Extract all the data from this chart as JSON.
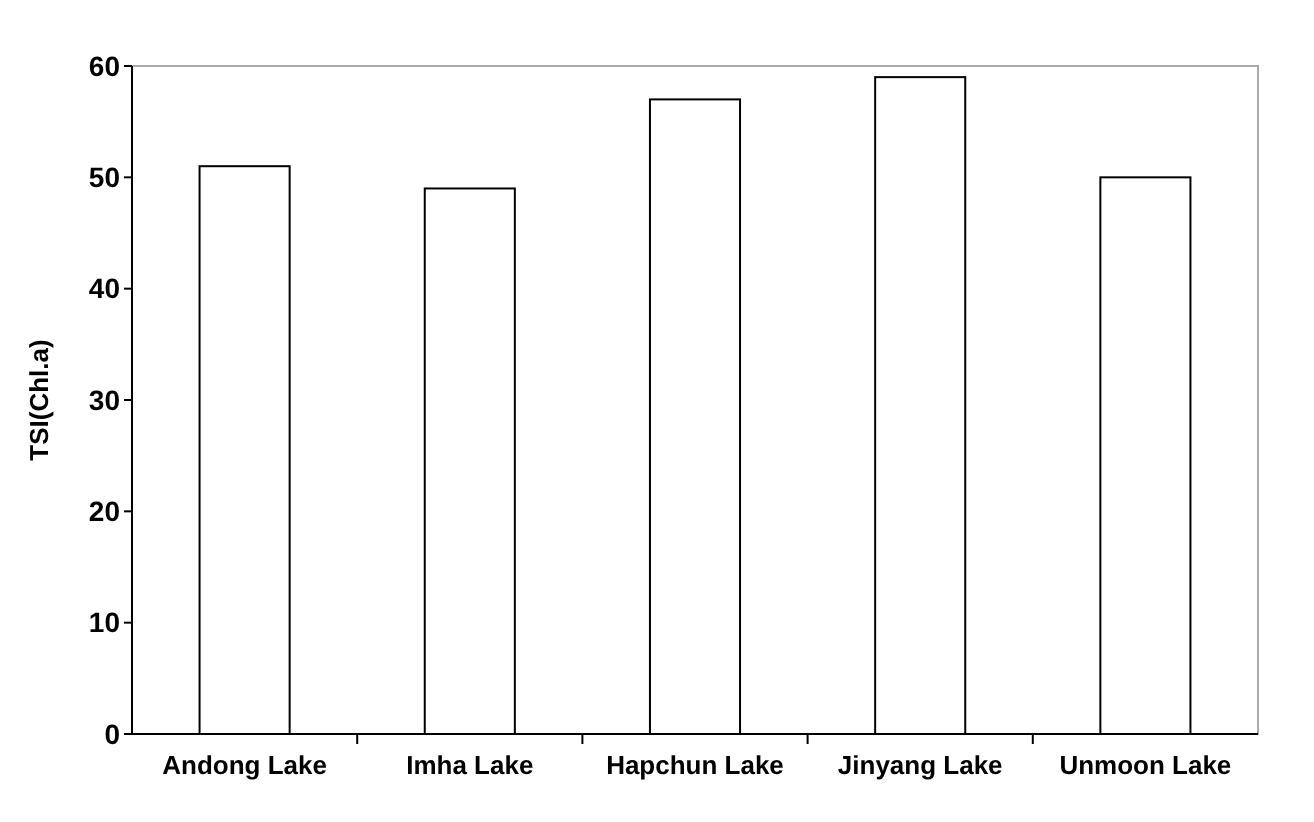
{
  "chart_data": {
    "type": "bar",
    "ylabel": "TSI(Chl.a)",
    "categories": [
      "Andong Lake",
      "Imha Lake",
      "Hapchun Lake",
      "Jinyang Lake",
      "Unmoon Lake"
    ],
    "values": [
      51,
      49,
      57,
      59,
      50
    ],
    "color": "#ffffff",
    "ylim": [
      0,
      60
    ],
    "yticks": [
      0,
      10,
      20,
      30,
      40,
      50,
      60
    ],
    "grid": false
  }
}
